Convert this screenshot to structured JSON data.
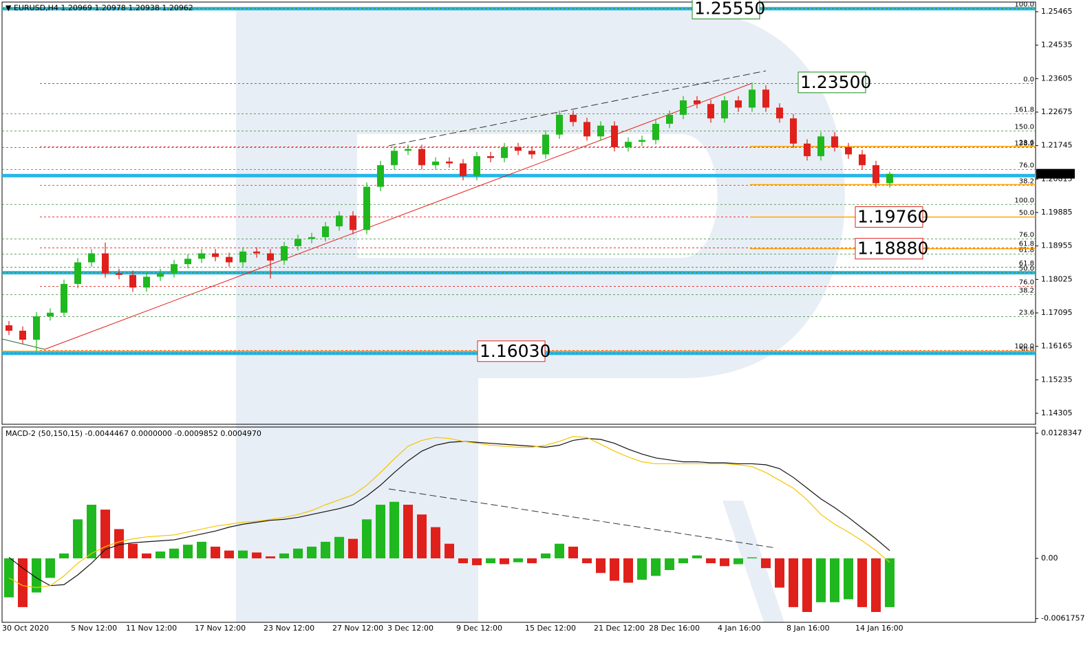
{
  "header": "▼ EURUSD,H4  1.20969 1.20978 1.20938 1.20962",
  "chart_data": [
    {
      "type": "candlestick",
      "colors": {
        "up": "#1fb81f",
        "down": "#e0201b"
      },
      "categories": [
        "30 Oct 2020",
        null,
        null,
        null,
        null,
        "5 Nov 12:00",
        null,
        null,
        null,
        "11 Nov 12:00",
        null,
        null,
        null,
        null,
        "17 Nov 12:00",
        null,
        null,
        null,
        null,
        "23 Nov 12:00",
        null,
        null,
        null,
        null,
        "27 Nov 12:00",
        null,
        null,
        null,
        "3 Dec 12:00",
        null,
        null,
        null,
        null,
        "9 Dec 12:00",
        null,
        null,
        null,
        null,
        "15 Dec 12:00",
        null,
        null,
        null,
        null,
        "21 Dec 12:00",
        null,
        null,
        null,
        "28 Dec 16:00",
        null,
        null,
        null,
        null,
        "4 Jan 16:00",
        null,
        null,
        null,
        null,
        "8 Jan 16:00",
        null,
        null,
        null,
        null,
        "14 Jan 16:00",
        null,
        null
      ],
      "open": [
        1.1675,
        1.166,
        1.1635,
        1.17,
        1.171,
        1.179,
        1.185,
        1.1875,
        1.182,
        1.1815,
        1.178,
        1.181,
        1.182,
        1.1845,
        1.186,
        1.1875,
        1.1865,
        1.185,
        1.188,
        1.1875,
        1.1855,
        1.1895,
        1.1915,
        1.192,
        1.195,
        1.198,
        1.194,
        1.206,
        1.212,
        1.216,
        1.2165,
        1.212,
        1.213,
        1.2125,
        1.209,
        1.2145,
        1.214,
        1.217,
        1.216,
        1.215,
        1.2205,
        1.226,
        1.224,
        1.22,
        1.223,
        1.217,
        1.2185,
        1.219,
        1.2235,
        1.226,
        1.23,
        1.229,
        1.225,
        1.23,
        1.228,
        1.233,
        1.228,
        1.225,
        1.218,
        1.2145,
        1.22,
        1.217,
        1.215,
        1.212,
        1.207
      ],
      "high": [
        1.1687,
        1.1672,
        1.1712,
        1.1722,
        1.1802,
        1.1862,
        1.1887,
        1.1905,
        1.1832,
        1.1827,
        1.1822,
        1.1832,
        1.1857,
        1.1872,
        1.1887,
        1.1887,
        1.1877,
        1.1892,
        1.1892,
        1.1887,
        1.1907,
        1.1927,
        1.1932,
        1.1962,
        1.1992,
        1.1992,
        1.2072,
        1.2132,
        1.2172,
        1.2177,
        1.2177,
        1.2142,
        1.2142,
        1.2137,
        1.2157,
        1.2157,
        1.2182,
        1.2182,
        1.2172,
        1.2217,
        1.2272,
        1.2272,
        1.2252,
        1.2242,
        1.2242,
        1.2197,
        1.2202,
        1.2247,
        1.2272,
        1.2312,
        1.2312,
        1.2302,
        1.2312,
        1.2312,
        1.235,
        1.2342,
        1.2292,
        1.2262,
        1.2192,
        1.2212,
        1.2212,
        1.2182,
        1.2162,
        1.2132,
        1.2102
      ],
      "low": [
        1.1648,
        1.1623,
        1.1603,
        1.1688,
        1.1698,
        1.1778,
        1.1838,
        1.1808,
        1.1803,
        1.1768,
        1.1768,
        1.1798,
        1.1808,
        1.1833,
        1.1848,
        1.1853,
        1.1838,
        1.1838,
        1.1863,
        1.1805,
        1.1843,
        1.1883,
        1.1903,
        1.1908,
        1.1938,
        1.1928,
        1.1928,
        1.2048,
        1.2108,
        1.2148,
        1.2108,
        1.2108,
        1.2113,
        1.2078,
        1.2078,
        1.2128,
        1.2128,
        1.2148,
        1.2138,
        1.2138,
        1.2193,
        1.2228,
        1.2188,
        1.2188,
        1.2158,
        1.2158,
        1.2173,
        1.2178,
        1.2223,
        1.2248,
        1.2278,
        1.2238,
        1.2238,
        1.2268,
        1.2268,
        1.2268,
        1.2238,
        1.2168,
        1.2133,
        1.2133,
        1.2158,
        1.2138,
        1.2108,
        1.2058,
        1.2058
      ],
      "close": [
        1.166,
        1.1635,
        1.17,
        1.171,
        1.179,
        1.185,
        1.1875,
        1.182,
        1.1815,
        1.178,
        1.181,
        1.182,
        1.1845,
        1.186,
        1.1875,
        1.1865,
        1.185,
        1.188,
        1.1875,
        1.1855,
        1.1895,
        1.1915,
        1.192,
        1.195,
        1.198,
        1.194,
        1.206,
        1.212,
        1.216,
        1.2165,
        1.212,
        1.213,
        1.2125,
        1.209,
        1.2145,
        1.214,
        1.217,
        1.216,
        1.215,
        1.2205,
        1.226,
        1.224,
        1.22,
        1.223,
        1.217,
        1.2185,
        1.219,
        1.2235,
        1.226,
        1.23,
        1.229,
        1.225,
        1.23,
        1.228,
        1.233,
        1.228,
        1.225,
        1.218,
        1.2145,
        1.22,
        1.217,
        1.215,
        1.212,
        1.207,
        1.2096
      ],
      "ylim": [
        1.14,
        1.25733
      ],
      "yticks": [
        1.25465,
        1.24535,
        1.23605,
        1.22675,
        1.21745,
        1.20815,
        1.19885,
        1.18955,
        1.18025,
        1.17095,
        1.16165,
        1.15235,
        1.14305
      ],
      "bands": {
        "color": "#29b6e8",
        "values": [
          1.2555,
          1.2091,
          1.1821,
          1.1597
        ]
      },
      "levels": [
        {
          "price": 1.2555,
          "label": "100.0",
          "color": "#2e8b2e"
        },
        {
          "price": 1.2263,
          "label": "161.8",
          "color": "#2e8b2e"
        },
        {
          "price": 1.2215,
          "label": "150.0",
          "color": "#2e8b2e"
        },
        {
          "price": 1.2169,
          "label": "138.2",
          "color": "#2e8b2e"
        },
        {
          "price": 1.2108,
          "label": "76.0",
          "color": "#2e8b2e"
        },
        {
          "price": 1.2011,
          "label": "100.0",
          "color": "#2e8b2e"
        },
        {
          "price": 1.1915,
          "label": "76.0",
          "color": "#2e8b2e"
        },
        {
          "price": 1.1873,
          "label": "61.8",
          "color": "#2e8b2e"
        },
        {
          "price": 1.1836,
          "label": "61.8",
          "color": "#2e8b2e"
        },
        {
          "price": 1.1821,
          "label": "50.0",
          "color": "#2e8b2e"
        },
        {
          "price": 1.176,
          "label": "38.2",
          "color": "#2e8b2e"
        },
        {
          "price": 1.1699,
          "label": "23.6",
          "color": "#2e8b2e"
        },
        {
          "price": 1.1597,
          "label": "50.0",
          "color": "#2e8b2e"
        },
        {
          "price": 1.2347,
          "label": "0.0",
          "color": "#e0201b"
        },
        {
          "price": 1.2171,
          "label": "23.6",
          "color": "#e0201b"
        },
        {
          "price": 1.2064,
          "label": "38.2",
          "color": "#e0201b"
        },
        {
          "price": 1.1976,
          "label": "50.0",
          "color": "#e0201b"
        },
        {
          "price": 1.189,
          "label": "61.8",
          "color": "#e0201b"
        },
        {
          "price": 1.1783,
          "label": "76.0",
          "color": "#e0201b"
        },
        {
          "price": 1.1605,
          "label": "100.0",
          "color": "#e0201b"
        }
      ],
      "orange_levels": {
        "color": "#ffa500",
        "values": [
          1.2172,
          1.2066,
          1.1976,
          1.1888,
          1.1603
        ]
      },
      "annotations": [
        {
          "value": 1.2555,
          "label": "1.25550",
          "color": "#1a8a1a"
        },
        {
          "value": 1.235,
          "label": "1.23500",
          "color": "#1a8a1a"
        },
        {
          "value": 1.1976,
          "label": "1.19760",
          "color": "#e0201b"
        },
        {
          "value": 1.1888,
          "label": "1.18880",
          "color": "#e0201b"
        },
        {
          "value": 1.1603,
          "label": "1.16030",
          "color": "#e0201b"
        }
      ],
      "last_price": {
        "value": 1.20962,
        "label": "1.20962"
      }
    },
    {
      "type": "macd",
      "title": "MACD-2 (50,150,15) -0.0044467 0.0000000 -0.0009852 0.0004970",
      "colors": {
        "up": "#1fb81f",
        "down": "#e0201b"
      },
      "histogram": [
        -0.004,
        -0.005,
        -0.0035,
        -0.002,
        0.0005,
        0.004,
        0.0055,
        0.005,
        0.003,
        0.0015,
        0.0005,
        0.0007,
        0.001,
        0.0014,
        0.0017,
        0.0012,
        0.0008,
        0.0008,
        0.0006,
        0.0002,
        0.0005,
        0.001,
        0.0012,
        0.0017,
        0.0022,
        0.002,
        0.004,
        0.0055,
        0.0058,
        0.0055,
        0.0045,
        0.0032,
        0.0015,
        -0.0005,
        -0.0007,
        -0.0005,
        -0.0006,
        -0.0004,
        -0.0005,
        0.0005,
        0.0015,
        0.0012,
        -0.0005,
        -0.0015,
        -0.0023,
        -0.0025,
        -0.0022,
        -0.0018,
        -0.0012,
        -0.0005,
        0.0003,
        -0.0005,
        -0.0008,
        -0.0006,
        0.0001,
        -0.001,
        -0.003,
        -0.005,
        -0.0055,
        -0.0045,
        -0.0045,
        -0.0042,
        -0.005,
        -0.0055,
        -0.005
      ],
      "series": [
        {
          "color": "#111111",
          "values": [
            0.0001,
            -0.001,
            -0.002,
            -0.0028,
            -0.0027,
            -0.0017,
            -0.0005,
            0.0009,
            0.0014,
            0.0016,
            0.0017,
            0.0018,
            0.0019,
            0.0022,
            0.0025,
            0.0028,
            0.0032,
            0.0035,
            0.0037,
            0.0039,
            0.004,
            0.0042,
            0.0045,
            0.0048,
            0.0051,
            0.0055,
            0.0064,
            0.0075,
            0.0088,
            0.01,
            0.011,
            0.0116,
            0.0119,
            0.012,
            0.0119,
            0.0118,
            0.0117,
            0.0116,
            0.0115,
            0.0114,
            0.0116,
            0.0121,
            0.0123,
            0.0122,
            0.0118,
            0.0112,
            0.0107,
            0.0103,
            0.0101,
            0.0099,
            0.0099,
            0.0098,
            0.0098,
            0.0097,
            0.0097,
            0.0096,
            0.0092,
            0.0083,
            0.0072,
            0.0061,
            0.0052,
            0.0042,
            0.0031,
            0.002,
            0.0008
          ]
        },
        {
          "color": "#f5c400",
          "values": [
            -0.002,
            -0.0028,
            -0.003,
            -0.0028,
            -0.0018,
            -0.0005,
            0.0005,
            0.0012,
            0.0017,
            0.002,
            0.0022,
            0.0023,
            0.0024,
            0.0027,
            0.003,
            0.0033,
            0.0035,
            0.0037,
            0.0038,
            0.004,
            0.0042,
            0.0045,
            0.0049,
            0.0055,
            0.006,
            0.0065,
            0.0075,
            0.0088,
            0.0102,
            0.0115,
            0.0121,
            0.0124,
            0.0123,
            0.012,
            0.0118,
            0.0116,
            0.0115,
            0.0114,
            0.0114,
            0.0116,
            0.012,
            0.0125,
            0.0124,
            0.0117,
            0.011,
            0.0104,
            0.0099,
            0.0097,
            0.0097,
            0.0097,
            0.0097,
            0.0097,
            0.0097,
            0.0096,
            0.0094,
            0.0088,
            0.008,
            0.0072,
            0.006,
            0.0045,
            0.0035,
            0.0027,
            0.0018,
            0.0008,
            -0.0004
          ]
        }
      ],
      "ylim": [
        -0.00656,
        0.01347
      ],
      "yticks": [
        0.0128347,
        {
          "value": 0,
          "label": "0.00"
        },
        -0.0061757
      ]
    }
  ]
}
